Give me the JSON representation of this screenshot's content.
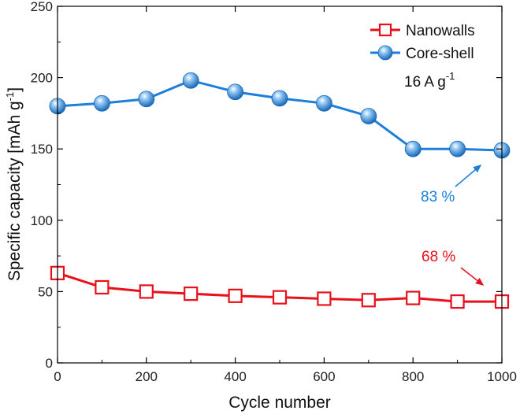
{
  "chart_data": {
    "type": "line",
    "xlabel": "Cycle number",
    "ylabel": "Specific capacity [mAh g",
    "ylabel_sup": "-1",
    "xlim": [
      0,
      1000
    ],
    "ylim": [
      0,
      250
    ],
    "xticks": [
      0,
      200,
      400,
      600,
      800,
      1000
    ],
    "yticks": [
      0,
      50,
      100,
      150,
      200,
      250
    ],
    "x": [
      0,
      100,
      200,
      300,
      400,
      500,
      600,
      700,
      800,
      900,
      1000
    ],
    "series": [
      {
        "name": "Nanowalls",
        "color": "#e8101b",
        "marker": "open-square",
        "values": [
          63,
          53,
          50,
          48.5,
          47,
          46,
          45,
          44,
          45.5,
          43,
          43
        ]
      },
      {
        "name": "Core-shell",
        "color": "#1c7fd9",
        "marker": "sphere",
        "values": [
          180,
          182,
          185,
          198,
          190,
          185.5,
          182,
          173,
          150,
          150,
          149
        ]
      }
    ],
    "legend_position": "top-right",
    "grid": false,
    "condition_label": "16 A g",
    "condition_sup": "-1",
    "annotations": [
      {
        "text": "83 %",
        "color": "#1c7fd9",
        "points_to": {
          "x": 1000,
          "y": 149
        }
      },
      {
        "text": "68 %",
        "color": "#e8101b",
        "points_to": {
          "x": 1000,
          "y": 43
        }
      }
    ]
  }
}
